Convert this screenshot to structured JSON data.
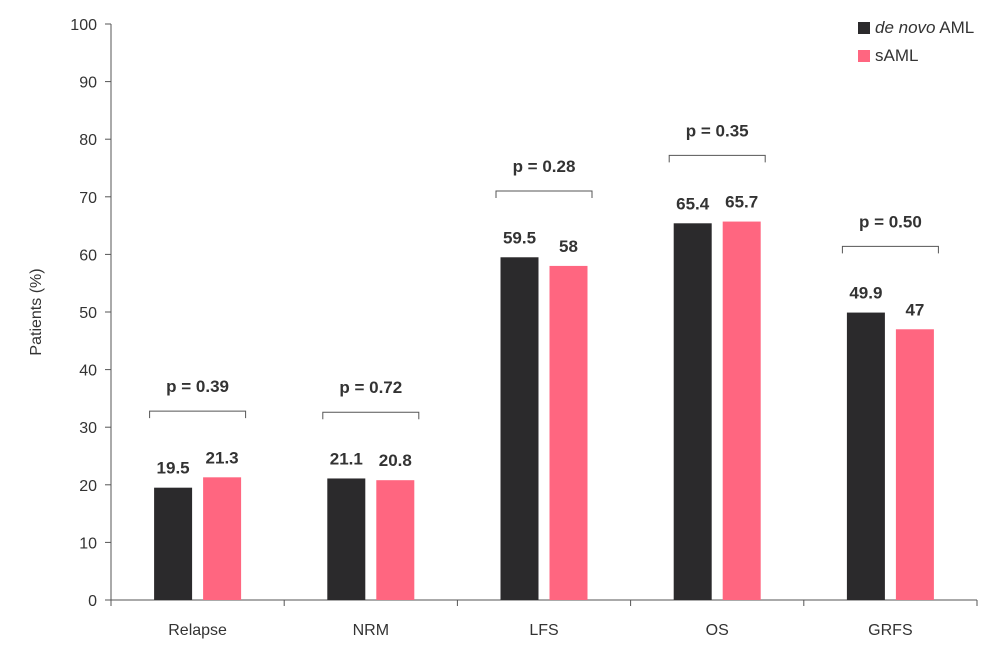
{
  "chart_data": {
    "type": "bar",
    "title": "",
    "xlabel": "",
    "ylabel": "Patients (%)",
    "ylim": [
      0,
      100
    ],
    "yticks": [
      0,
      10,
      20,
      30,
      40,
      50,
      60,
      70,
      80,
      90,
      100
    ],
    "grid": false,
    "legend_position": "top-right",
    "categories": [
      "Relapse",
      "NRM",
      "LFS",
      "OS",
      "GRFS"
    ],
    "series": [
      {
        "name": "de novo AML",
        "name_italic": "de novo",
        "name_rest": "AML",
        "color": "#2b2a2c",
        "values": [
          19.5,
          21.1,
          59.5,
          65.4,
          49.9
        ],
        "labels": [
          "19.5",
          "21.1",
          "59.5",
          "65.4",
          "49.9"
        ]
      },
      {
        "name": "sAML",
        "color": "#ff6680",
        "values": [
          21.3,
          20.8,
          58,
          65.7,
          47
        ],
        "labels": [
          "21.3",
          "20.8",
          "58",
          "65.7",
          "47"
        ]
      }
    ],
    "annotations": [
      "p = 0.39",
      "p = 0.72",
      "p = 0.28",
      "p = 0.35",
      "p = 0.50"
    ]
  }
}
